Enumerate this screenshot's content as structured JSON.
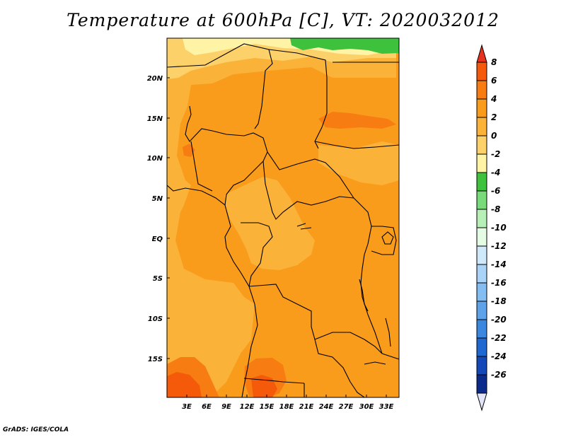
{
  "title": "Temperature at 600hPa [C], VT: 2020032012",
  "credit": "GrADS: IGES/COLA",
  "map": {
    "lat_labels": [
      "20N",
      "15N",
      "10N",
      "5N",
      "EQ",
      "5S",
      "10S",
      "15S"
    ],
    "lon_labels": [
      "3E",
      "6E",
      "9E",
      "12E",
      "15E",
      "18E",
      "21E",
      "24E",
      "27E",
      "30E",
      "33E"
    ]
  },
  "colorbar": {
    "labels": [
      "8",
      "6",
      "4",
      "2",
      "0",
      "-2",
      "-4",
      "-6",
      "-8",
      "-10",
      "-12",
      "-14",
      "-16",
      "-18",
      "-20",
      "-22",
      "-24",
      "-26"
    ],
    "colors": [
      "#e8321e",
      "#f55a0a",
      "#f77d12",
      "#f99c1c",
      "#fbb238",
      "#fdd16a",
      "#fff4a6",
      "#3ec23e",
      "#78da78",
      "#b6f0b6",
      "#e4fbe4",
      "#cfe9fb",
      "#a9d4f7",
      "#84bdf2",
      "#5ea3ea",
      "#3b87e0",
      "#1f68d2",
      "#1448b8",
      "#0a2a8c"
    ],
    "low_end_color": "#e2e4fa"
  },
  "palette": {
    "map_base": "#f99c1c",
    "map_mid": "#fbb238",
    "map_cool": "#fdd16a",
    "map_cold": "#fff4a6",
    "map_green": "#3ec23e",
    "map_hot": "#f77d12",
    "map_hottest": "#f55a0a",
    "border": "#000000"
  }
}
